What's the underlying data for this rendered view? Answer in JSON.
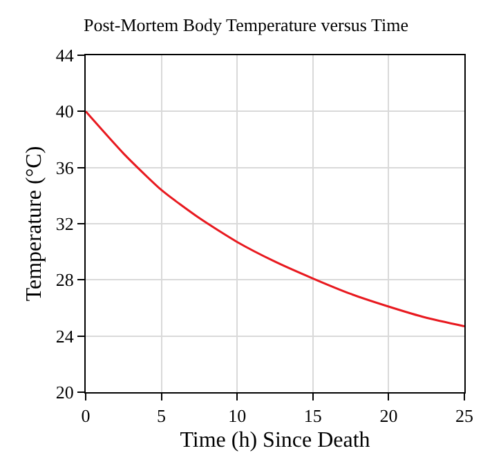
{
  "chart_data": {
    "type": "line",
    "title": "Post-Mortem Body Temperature versus Time",
    "xlabel": "Time (h) Since Death",
    "ylabel": "Temperature (°C)",
    "x": [
      0,
      2.5,
      5,
      7.5,
      10,
      12.5,
      15,
      17.5,
      20,
      22.5,
      25
    ],
    "series": [
      {
        "color": "#e8191f",
        "values": [
          40,
          37.0,
          34.4,
          32.4,
          30.7,
          29.3,
          28.1,
          27.0,
          26.1,
          25.3,
          24.7
        ]
      }
    ],
    "xlim": [
      0,
      25
    ],
    "xticks": [
      0,
      5,
      10,
      15,
      20,
      25
    ],
    "ylim": [
      20,
      44
    ],
    "yticks": [
      20,
      24,
      28,
      32,
      36,
      40,
      44
    ],
    "grid": true
  }
}
